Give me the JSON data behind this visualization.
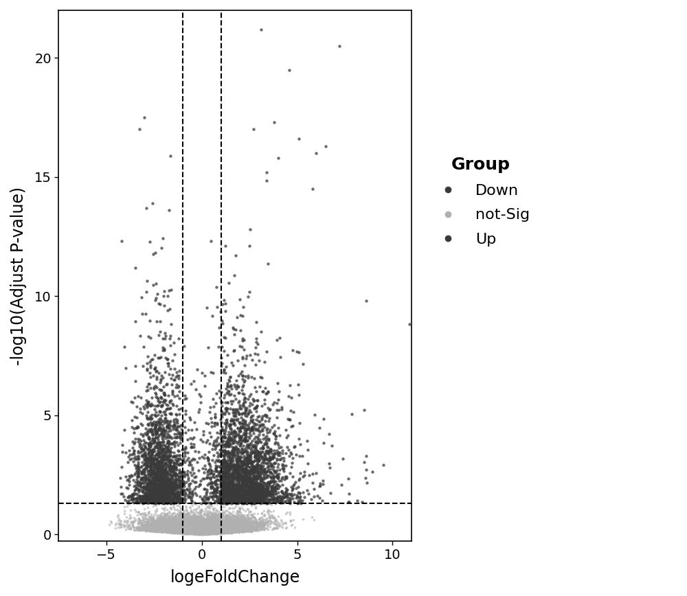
{
  "title": "",
  "xlabel": "logeFoldChange",
  "ylabel": "-log10(Adjust P-value)",
  "xlim": [
    -7.5,
    11
  ],
  "ylim": [
    -0.3,
    22
  ],
  "xticks": [
    -5,
    0,
    5,
    10
  ],
  "yticks": [
    0,
    5,
    10,
    15,
    20
  ],
  "vline1": -1.0,
  "vline2": 1.0,
  "hline": 1.301,
  "color_down": "#3a3a3a",
  "color_notsig": "#b0b0b0",
  "color_up": "#3a3a3a",
  "point_size_main": 10,
  "point_size_notsig": 7,
  "alpha_main": 0.75,
  "alpha_notsig": 0.6,
  "legend_title": "Group",
  "legend_labels": [
    "Down",
    "not-Sig",
    "Up"
  ],
  "seed": 42,
  "n_notsig": 7000,
  "n_down": 2200,
  "n_up": 3000,
  "background_color": "#ffffff",
  "axis_linewidth": 1.2,
  "legend_fontsize": 16,
  "legend_title_fontsize": 18,
  "axis_label_fontsize": 17,
  "tick_fontsize": 14
}
